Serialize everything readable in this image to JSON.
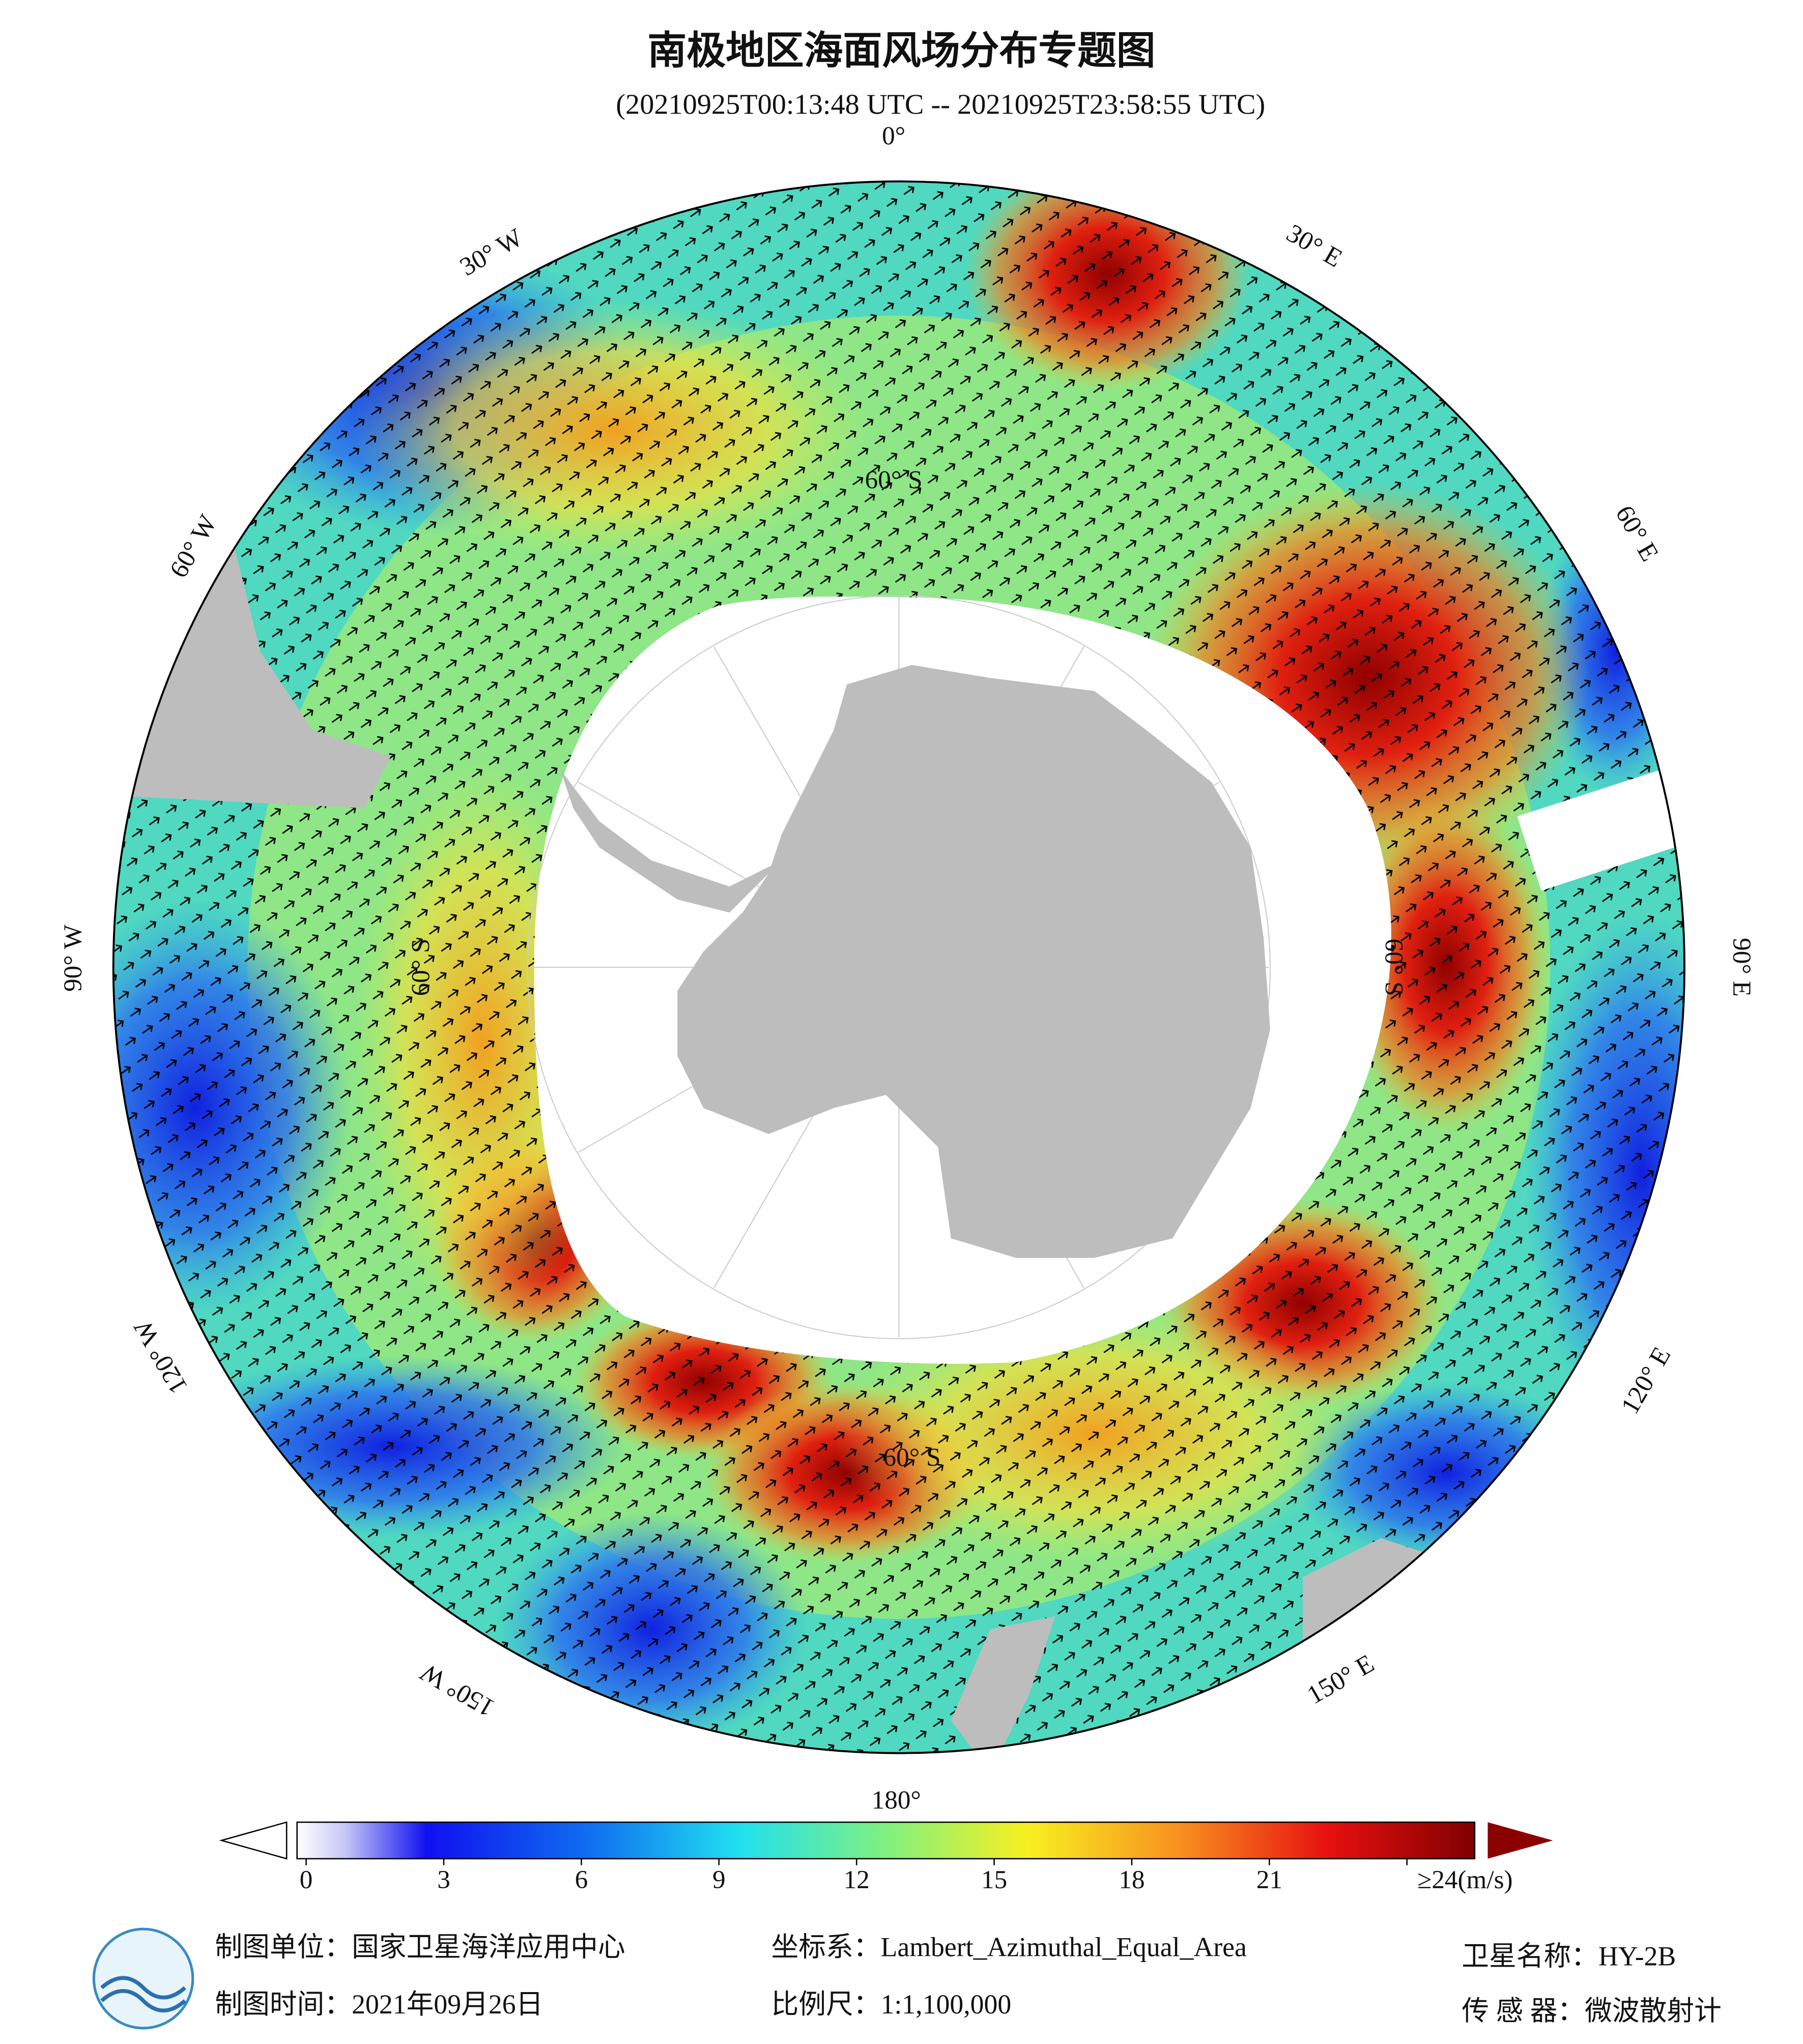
{
  "header": {
    "title": "南极地区海面风场分布专题图",
    "subtitle": "(20210925T00:13:48 UTC -- 20210925T23:58:55 UTC)"
  },
  "map": {
    "lon_labels": [
      "0°",
      "30° E",
      "60° E",
      "90° E",
      "120° E",
      "150° E",
      "180°",
      "150° W",
      "120° W",
      "90° W",
      "60° W",
      "30° W"
    ],
    "lat_labels": [
      "60° S",
      "60° S",
      "60° S",
      "60° S"
    ]
  },
  "colorbar": {
    "range": [
      0,
      24
    ],
    "ticks": [
      0,
      3,
      6,
      9,
      12,
      15,
      18,
      21,
      {
        "value": 24,
        "label": "≥24(m/s)"
      }
    ]
  },
  "footer": {
    "unit": "制图单位：国家卫星海洋应用中心",
    "date": "制图时间：2021年09月26日",
    "crs": "坐标系：Lambert_Azimuthal_Equal_Area",
    "scale": "比例尺：1:1,100,000",
    "satellite": "卫星名称：HY-2B",
    "sensor": "传 感 器：微波散射计"
  }
}
